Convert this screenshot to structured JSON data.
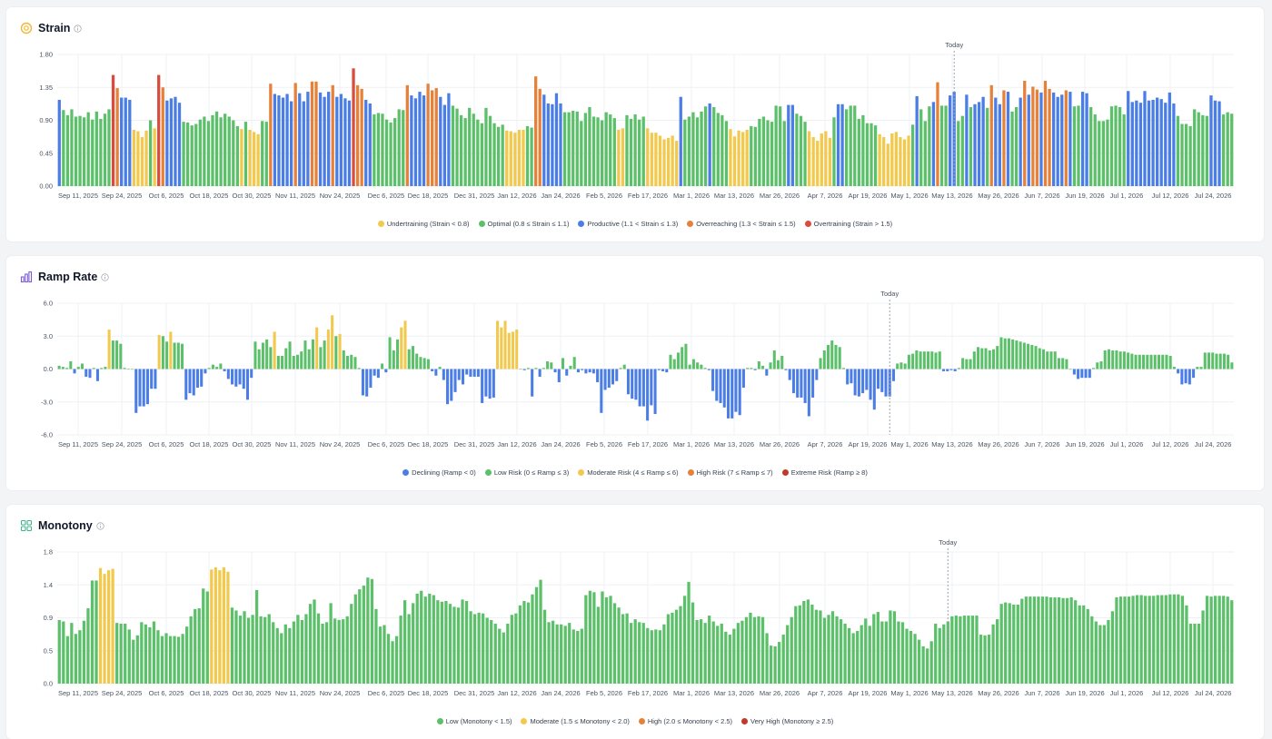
{
  "today_label": "Today",
  "colors": {
    "grid": "#eef0f3",
    "axis": "#9ca3af",
    "tick": "#4b5563",
    "today_line": "#9ca3af"
  },
  "x_tick_labels": [
    "Sep 11, 2025",
    "Sep 24, 2025",
    "Oct 6, 2025",
    "Oct 18, 2025",
    "Oct 30, 2025",
    "Nov 11, 2025",
    "Nov 24, 2025",
    "Dec 6, 2025",
    "Dec 18, 2025",
    "Dec 31, 2025",
    "Jan 12, 2026",
    "Jan 24, 2026",
    "Feb 5, 2026",
    "Feb 17, 2026",
    "Mar 1, 2026",
    "Mar 13, 2026",
    "Mar 26, 2026",
    "Apr 7, 2026",
    "Apr 19, 2026",
    "May 1, 2026",
    "May 13, 2026",
    "May 26, 2026",
    "Jun 7, 2026",
    "Jun 19, 2026",
    "Jul 1, 2026",
    "Jul 12, 2026",
    "Jul 24, 2026"
  ],
  "chart_data": [
    {
      "type": "bar",
      "title": "Strain",
      "icon": "strain-icon",
      "y_ticks": [
        "1.80",
        "1.35",
        "0.90",
        "0.45",
        "0.00"
      ],
      "ylim": [
        0,
        1.8
      ],
      "today_index": 216,
      "legend": [
        {
          "label": "Undertraining (Strain < 0.8)",
          "color": "#f2c94c"
        },
        {
          "label": "Optimal (0.8 ≤ Strain ≤ 1.1)",
          "color": "#5cc06a"
        },
        {
          "label": "Productive (1.1 < Strain ≤ 1.3)",
          "color": "#4a7de6"
        },
        {
          "label": "Overreaching (1.3 < Strain ≤ 1.5)",
          "color": "#e6813a"
        },
        {
          "label": "Overtraining (Strain > 1.5)",
          "color": "#d94c3d"
        }
      ],
      "values": [
        1.18,
        1.04,
        0.97,
        1.05,
        0.95,
        0.96,
        0.94,
        1.01,
        0.91,
        1.02,
        0.92,
        0.99,
        1.05,
        1.52,
        1.34,
        1.21,
        1.21,
        1.18,
        0.77,
        0.75,
        0.67,
        0.76,
        0.9,
        0.79,
        1.52,
        1.35,
        1.17,
        1.2,
        1.22,
        1.14,
        0.88,
        0.87,
        0.83,
        0.85,
        0.91,
        0.95,
        0.89,
        0.97,
        1.02,
        0.94,
        0.99,
        0.95,
        0.9,
        0.82,
        0.78,
        0.88,
        0.77,
        0.74,
        0.71,
        0.89,
        0.88,
        1.4,
        1.26,
        1.24,
        1.21,
        1.26,
        1.16,
        1.41,
        1.27,
        1.16,
        1.29,
        1.43,
        1.43,
        1.28,
        1.22,
        1.29,
        1.38,
        1.22,
        1.26,
        1.2,
        1.17,
        1.61,
        1.38,
        1.33,
        1.18,
        1.13,
        0.98,
        1.0,
        0.99,
        0.91,
        0.87,
        0.93,
        1.05,
        1.04,
        1.38,
        1.24,
        1.2,
        1.29,
        1.24,
        1.4,
        1.31,
        1.34,
        1.22,
        1.11,
        1.27,
        1.1,
        1.06,
        0.97,
        0.93,
        1.07,
        0.99,
        0.91,
        0.86,
        1.07,
        0.96,
        0.86,
        0.81,
        0.84,
        0.76,
        0.75,
        0.73,
        0.77,
        0.77,
        0.82,
        0.8,
        1.5,
        1.33,
        1.25,
        1.13,
        1.12,
        1.27,
        1.13,
        1.01,
        1.01,
        1.03,
        1.02,
        0.89,
        1.0,
        1.08,
        0.95,
        0.94,
        0.9,
        1.01,
        0.98,
        0.93,
        0.77,
        0.79,
        0.97,
        0.92,
        0.98,
        0.91,
        0.95,
        0.79,
        0.73,
        0.73,
        0.69,
        0.64,
        0.66,
        0.69,
        0.62,
        1.22,
        0.91,
        0.95,
        1.01,
        0.94,
        1.02,
        1.09,
        1.13,
        1.08,
        1.0,
        0.97,
        0.89,
        0.78,
        0.68,
        0.76,
        0.74,
        0.77,
        0.82,
        0.81,
        0.92,
        0.95,
        0.9,
        0.88,
        1.1,
        1.09,
        0.89,
        1.11,
        1.11,
        0.99,
        0.96,
        0.88,
        0.75,
        0.67,
        0.62,
        0.72,
        0.75,
        0.66,
        0.94,
        1.12,
        1.12,
        1.05,
        1.1,
        1.1,
        0.92,
        0.97,
        0.86,
        0.86,
        0.83,
        0.71,
        0.67,
        0.58,
        0.72,
        0.74,
        0.67,
        0.64,
        0.69,
        0.84,
        1.23,
        1.05,
        0.89,
        1.09,
        1.15,
        1.42,
        1.1,
        1.1,
        1.24,
        1.29,
        0.89,
        0.96,
        1.25,
        1.08,
        1.12,
        1.15,
        1.22,
        1.07,
        1.38,
        1.21,
        1.12,
        1.31,
        1.29,
        1.02,
        1.08,
        1.21,
        1.44,
        1.25,
        1.36,
        1.32,
        1.28,
        1.44,
        1.33,
        1.28,
        1.22,
        1.25,
        1.31,
        1.29,
        1.09,
        1.1,
        1.29,
        1.27,
        1.08,
        0.98,
        0.89,
        0.89,
        0.91,
        1.09,
        1.1,
        1.08,
        0.98,
        1.3,
        1.15,
        1.17,
        1.14,
        1.3,
        1.17,
        1.18,
        1.21,
        1.19,
        1.14,
        1.28,
        1.13,
        0.96,
        0.85,
        0.85,
        0.82,
        1.05,
        1.01,
        0.97,
        0.96,
        1.24,
        1.17,
        1.16,
        0.98,
        1.01,
        0.99
      ]
    },
    {
      "type": "bar",
      "title": "Ramp Rate",
      "icon": "ramp-rate-icon",
      "y_ticks": [
        "6.0",
        "3.0",
        "0.0",
        "-3.0",
        "-6.0"
      ],
      "ylim": [
        -6,
        6
      ],
      "today_index": 216,
      "legend": [
        {
          "label": "Declining (Ramp < 0)",
          "color": "#4a7de6"
        },
        {
          "label": "Low Risk (0 ≤ Ramp ≤ 3)",
          "color": "#5cc06a"
        },
        {
          "label": "Moderate Risk (4 ≤ Ramp ≤ 6)",
          "color": "#f2c94c"
        },
        {
          "label": "High Risk (7 ≤ Ramp ≤ 7)",
          "color": "#e6813a"
        },
        {
          "label": "Extreme Risk (Ramp ≥ 8)",
          "color": "#c0392b"
        }
      ],
      "values": [
        0.3,
        0.2,
        0.1,
        0.7,
        -0.4,
        0.2,
        0.5,
        -0.7,
        -0.8,
        0.1,
        -1.1,
        0.1,
        0.2,
        3.6,
        2.6,
        2.6,
        2.3,
        0.1,
        0.0,
        0.0,
        -4.0,
        -3.4,
        -3.4,
        -3.2,
        -1.8,
        -1.8,
        3.1,
        3.0,
        2.5,
        3.4,
        2.4,
        2.4,
        2.3,
        -2.8,
        -2.2,
        -2.4,
        -1.7,
        -1.6,
        -0.4,
        0.1,
        0.4,
        0.2,
        0.5,
        -0.2,
        -0.9,
        -1.4,
        -1.6,
        -1.4,
        -1.8,
        -2.8,
        -0.8,
        2.5,
        1.8,
        2.4,
        2.7,
        2.0,
        3.4,
        1.2,
        1.2,
        1.9,
        2.5,
        1.2,
        1.3,
        1.6,
        2.6,
        1.8,
        2.7,
        3.8,
        2.0,
        2.6,
        3.6,
        4.9,
        3.0,
        3.2,
        1.7,
        1.2,
        1.3,
        1.1,
        0.1,
        -2.4,
        -2.5,
        -1.7,
        -0.6,
        -0.8,
        0.5,
        -0.3,
        2.9,
        1.7,
        2.7,
        3.8,
        4.4,
        1.8,
        2.1,
        1.4,
        1.1,
        1.0,
        0.9,
        -0.2,
        -0.6,
        0.2,
        -1.0,
        -3.2,
        -2.9,
        -2.1,
        -1.0,
        -1.4,
        -0.5,
        -0.7,
        -0.7,
        -0.7,
        -3.1,
        -2.5,
        -2.7,
        -2.6,
        4.4,
        3.8,
        4.4,
        3.3,
        3.4,
        3.6,
        0.0,
        -0.1,
        0.1,
        -2.5,
        0.1,
        -0.7,
        0.1,
        0.7,
        0.6,
        -0.3,
        -1.2,
        1.0,
        -0.6,
        0.3,
        1.1,
        -0.3,
        -0.1,
        -0.4,
        -0.3,
        -0.4,
        -1.2,
        -4.0,
        -1.9,
        -1.7,
        -1.4,
        -1.1,
        0.1,
        0.4,
        -2.3,
        -2.7,
        -2.8,
        -3.4,
        -3.4,
        -4.7,
        -3.3,
        -4.1,
        -0.1,
        -0.2,
        -0.3,
        1.3,
        0.9,
        1.5,
        2.0,
        2.3,
        0.4,
        0.9,
        0.6,
        0.4,
        0.1,
        -0.1,
        -2.0,
        -2.9,
        -3.1,
        -3.5,
        -4.5,
        -4.5,
        -3.9,
        -4.2,
        -1.7,
        0.1,
        0.1,
        -0.1,
        0.7,
        0.3,
        -0.6,
        0.6,
        1.7,
        0.8,
        1.2,
        -0.1,
        -1.0,
        -2.2,
        -2.6,
        -2.6,
        -3.1,
        -4.3,
        -2.6,
        -1.0,
        1.0,
        1.7,
        2.2,
        2.6,
        2.2,
        2.0,
        0.1,
        -1.4,
        -1.3,
        -2.4,
        -2.5,
        -2.2,
        -1.9,
        -2.8,
        -3.7,
        -1.8,
        -2.1,
        -2.5,
        -2.5,
        -1.1,
        0.5,
        0.6,
        0.5,
        1.3,
        1.4,
        1.7,
        1.6,
        1.6,
        1.6,
        1.6,
        1.5,
        1.6,
        -0.2,
        -0.2,
        -0.1,
        -0.2,
        0.1,
        1.0,
        0.9,
        0.9,
        1.6,
        2.0,
        1.9,
        1.9,
        1.7,
        1.8,
        2.1,
        2.9,
        2.8,
        2.8,
        2.7,
        2.6,
        2.5,
        2.4,
        2.3,
        2.2,
        2.1,
        1.9,
        1.8,
        1.6,
        1.6,
        1.6,
        1.0,
        1.0,
        0.9,
        0.0,
        -0.5,
        -0.9,
        -0.8,
        -0.8,
        -0.8,
        0.1,
        0.6,
        0.7,
        1.7,
        1.8,
        1.7,
        1.7,
        1.6,
        1.6,
        1.5,
        1.4,
        1.3,
        1.3,
        1.3,
        1.3,
        1.3,
        1.3,
        1.3,
        1.3,
        1.3,
        1.2,
        0.2,
        -0.4,
        -1.4,
        -1.3,
        -1.4,
        -0.8,
        0.2,
        0.2,
        1.5,
        1.5,
        1.5,
        1.4,
        1.4,
        1.4,
        1.3,
        0.6
      ]
    },
    {
      "type": "bar",
      "title": "Monotony",
      "icon": "monotony-icon",
      "y_ticks": [
        "1.8",
        "1.4",
        "0.9",
        "0.5",
        "0.0"
      ],
      "ylim": [
        0,
        1.8
      ],
      "today_index": 216,
      "legend": [
        {
          "label": "Low (Monotony < 1.5)",
          "color": "#5cc06a"
        },
        {
          "label": "Moderate (1.5 ≤ Monotony < 2.0)",
          "color": "#f2c94c"
        },
        {
          "label": "High (2.0 ≤ Monotony < 2.5)",
          "color": "#e6813a"
        },
        {
          "label": "Very High (Monotony ≥ 2.5)",
          "color": "#c0392b"
        }
      ],
      "values": [
        0.87,
        0.85,
        0.65,
        0.83,
        0.68,
        0.73,
        0.86,
        1.03,
        1.41,
        1.41,
        1.58,
        1.5,
        1.55,
        1.57,
        0.83,
        0.82,
        0.82,
        0.74,
        0.6,
        0.66,
        0.84,
        0.81,
        0.77,
        0.85,
        0.73,
        0.65,
        0.69,
        0.65,
        0.65,
        0.64,
        0.68,
        0.78,
        0.92,
        1.02,
        1.03,
        1.3,
        1.26,
        1.56,
        1.59,
        1.55,
        1.59,
        1.53,
        1.04,
        1.0,
        0.93,
        0.99,
        0.9,
        0.94,
        1.28,
        0.92,
        0.91,
        0.95,
        0.84,
        0.76,
        0.69,
        0.81,
        0.76,
        0.85,
        0.94,
        0.87,
        0.95,
        1.09,
        1.15,
        0.96,
        0.82,
        0.84,
        1.1,
        0.89,
        0.87,
        0.88,
        0.92,
        1.09,
        1.22,
        1.29,
        1.34,
        1.45,
        1.43,
        1.02,
        0.78,
        0.8,
        0.68,
        0.58,
        0.65,
        0.93,
        1.14,
        0.95,
        1.1,
        1.23,
        1.27,
        1.19,
        1.23,
        1.21,
        1.14,
        1.12,
        1.13,
        1.09,
        1.05,
        1.04,
        1.15,
        1.13,
        0.99,
        0.95,
        0.97,
        0.96,
        0.9,
        0.87,
        0.82,
        0.75,
        0.7,
        0.82,
        0.94,
        0.96,
        1.07,
        1.13,
        1.11,
        1.22,
        1.32,
        1.42,
        1.01,
        0.84,
        0.86,
        0.81,
        0.81,
        0.79,
        0.83,
        0.74,
        0.72,
        0.75,
        1.21,
        1.27,
        1.25,
        1.05,
        1.26,
        1.18,
        1.2,
        1.1,
        1.04,
        0.95,
        0.96,
        0.83,
        0.88,
        0.84,
        0.83,
        0.76,
        0.73,
        0.74,
        0.73,
        0.81,
        0.95,
        0.97,
        1.01,
        1.06,
        1.2,
        1.39,
        1.11,
        0.87,
        0.88,
        0.83,
        0.93,
        0.85,
        0.79,
        0.82,
        0.71,
        0.67,
        0.75,
        0.83,
        0.86,
        0.91,
        0.97,
        0.91,
        0.92,
        0.91,
        0.69,
        0.52,
        0.51,
        0.57,
        0.67,
        0.8,
        0.91,
        1.06,
        1.07,
        1.13,
        1.15,
        1.08,
        1.01,
        1.0,
        0.9,
        0.94,
        0.99,
        0.92,
        0.88,
        0.82,
        0.76,
        0.69,
        0.72,
        0.8,
        0.89,
        0.79,
        0.95,
        0.98,
        0.85,
        0.85,
        1.0,
        0.99,
        0.85,
        0.84,
        0.75,
        0.72,
        0.68,
        0.6,
        0.51,
        0.48,
        0.58,
        0.82,
        0.76,
        0.81,
        0.85,
        0.92,
        0.93,
        0.92,
        0.93,
        0.93,
        0.93,
        0.93,
        0.67,
        0.66,
        0.67,
        0.81,
        0.88,
        1.09,
        1.11,
        1.1,
        1.08,
        1.08,
        1.16,
        1.19,
        1.19,
        1.19,
        1.19,
        1.19,
        1.19,
        1.18,
        1.18,
        1.18,
        1.17,
        1.17,
        1.18,
        1.14,
        1.07,
        1.07,
        1.02,
        0.92,
        0.85,
        0.8,
        0.8,
        0.87,
        0.99,
        1.18,
        1.19,
        1.19,
        1.19,
        1.2,
        1.21,
        1.21,
        1.2,
        1.2,
        1.2,
        1.21,
        1.21,
        1.21,
        1.22,
        1.22,
        1.22,
        1.2,
        1.07,
        0.82,
        0.82,
        0.82,
        1.0,
        1.2,
        1.19,
        1.2,
        1.2,
        1.2,
        1.19,
        1.14
      ]
    }
  ]
}
